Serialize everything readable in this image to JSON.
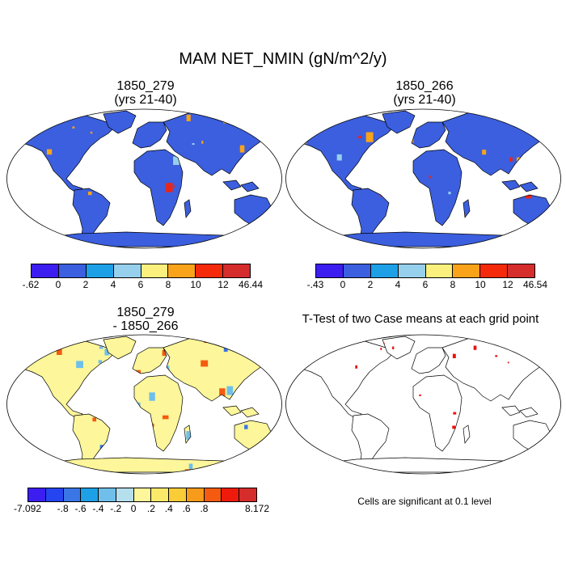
{
  "figure": {
    "title": "MAM NET_NMIN (gN/m^2/y)"
  },
  "panels": {
    "case1": {
      "title_line1": "1850_279",
      "title_line2": "(yrs 21-40)"
    },
    "case2": {
      "title_line1": "1850_266",
      "title_line2": "(yrs 21-40)"
    },
    "diff": {
      "title_line1": "1850_279",
      "title_line2": "- 1850_266"
    },
    "ttest": {
      "title": "T-Test of two Case means at each grid point",
      "note": "Cells are significant at 0.1 level"
    }
  },
  "colorbars": {
    "case1": {
      "colors": [
        "#3c1ef0",
        "#3b5fde",
        "#1ea0e6",
        "#96d0ec",
        "#fbef7e",
        "#f8a31a",
        "#f42a0b",
        "#d52c2c"
      ],
      "labels": [
        "-.62",
        "0",
        "2",
        "4",
        "6",
        "8",
        "10",
        "12",
        "46.44"
      ]
    },
    "case2": {
      "colors": [
        "#3c1ef0",
        "#3b5fde",
        "#1ea0e6",
        "#96d0ec",
        "#fbef7e",
        "#f8a31a",
        "#f42a0b",
        "#d52c2c"
      ],
      "labels": [
        "-.43",
        "0",
        "2",
        "4",
        "6",
        "8",
        "10",
        "12",
        "46.54"
      ]
    },
    "diff": {
      "colors": [
        "#3c1ef0",
        "#2545f0",
        "#3b76e6",
        "#1ea0e6",
        "#6fbfea",
        "#b6dfee",
        "#fdf69a",
        "#fbea6a",
        "#f9cc38",
        "#f89b1a",
        "#f45b10",
        "#ee1b0b",
        "#d52c2c"
      ],
      "labels": [
        "-7.092",
        "-.8",
        "-.6",
        "-.4",
        "-.2",
        "0",
        ".2",
        ".4",
        ".6",
        ".8",
        "8.172"
      ],
      "label_edges": [
        0,
        2,
        3,
        4,
        5,
        6,
        7,
        8,
        9,
        10,
        13
      ]
    }
  },
  "map_colors": {
    "ocean": "#ffffff",
    "coast": "#000000",
    "case_land_base": "#3b5fde",
    "case_hot": "#e8261a",
    "case_warm": "#f8a31a",
    "case_mid": "#96d0ec",
    "diff_base": "#fdf69a",
    "diff_neg": "#6fbfea",
    "diff_pos": "#f45b10",
    "sig": "#ee1111"
  }
}
